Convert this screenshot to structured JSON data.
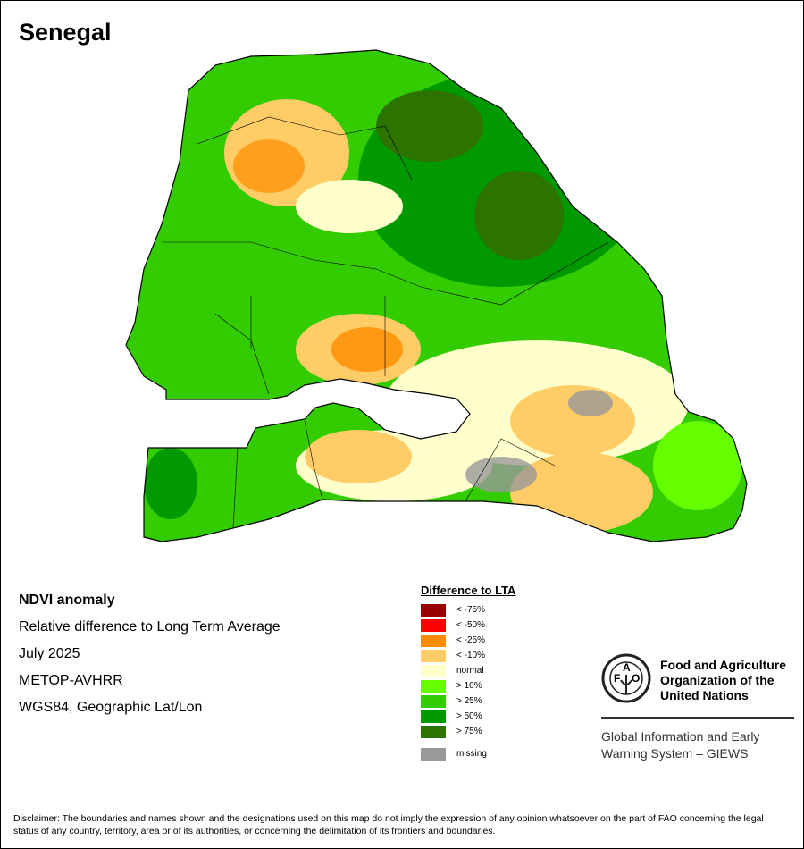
{
  "title": "Senegal",
  "info": [
    "NDVI anomaly",
    "Relative difference to Long Term Average",
    "July 2025",
    "METOP-AVHRR",
    "WGS84, Geographic Lat/Lon"
  ],
  "legend": {
    "title": "Difference to LTA",
    "items": [
      {
        "label": "< -75%",
        "color": "#990000"
      },
      {
        "label": "< -50%",
        "color": "#ff0000"
      },
      {
        "label": "< -25%",
        "color": "#ff8c00"
      },
      {
        "label": "< -10%",
        "color": "#ffcc66"
      },
      {
        "label": "normal",
        "color": "#ffffcc"
      },
      {
        "label": "> 10%",
        "color": "#66ff00"
      },
      {
        "label": "> 25%",
        "color": "#33cc00"
      },
      {
        "label": "> 50%",
        "color": "#009900"
      },
      {
        "label": "> 75%",
        "color": "#2d7300"
      }
    ],
    "missing": {
      "label": "missing",
      "color": "#999999"
    }
  },
  "fao": {
    "name": "Food and Agriculture Organization of the United Nations",
    "logo_text": "FAO FIAT PANIS",
    "giews": "Global Information and Early Warning System – GIEWS"
  },
  "disclaimer": "Disclaimer: The boundaries and names shown and the designations used on this map do not imply the expression of any opinion whatsoever on the part of FAO concerning the legal status of any country, territory, area or of its authorities, or concerning the delimitation of its frontiers and boundaries."
}
